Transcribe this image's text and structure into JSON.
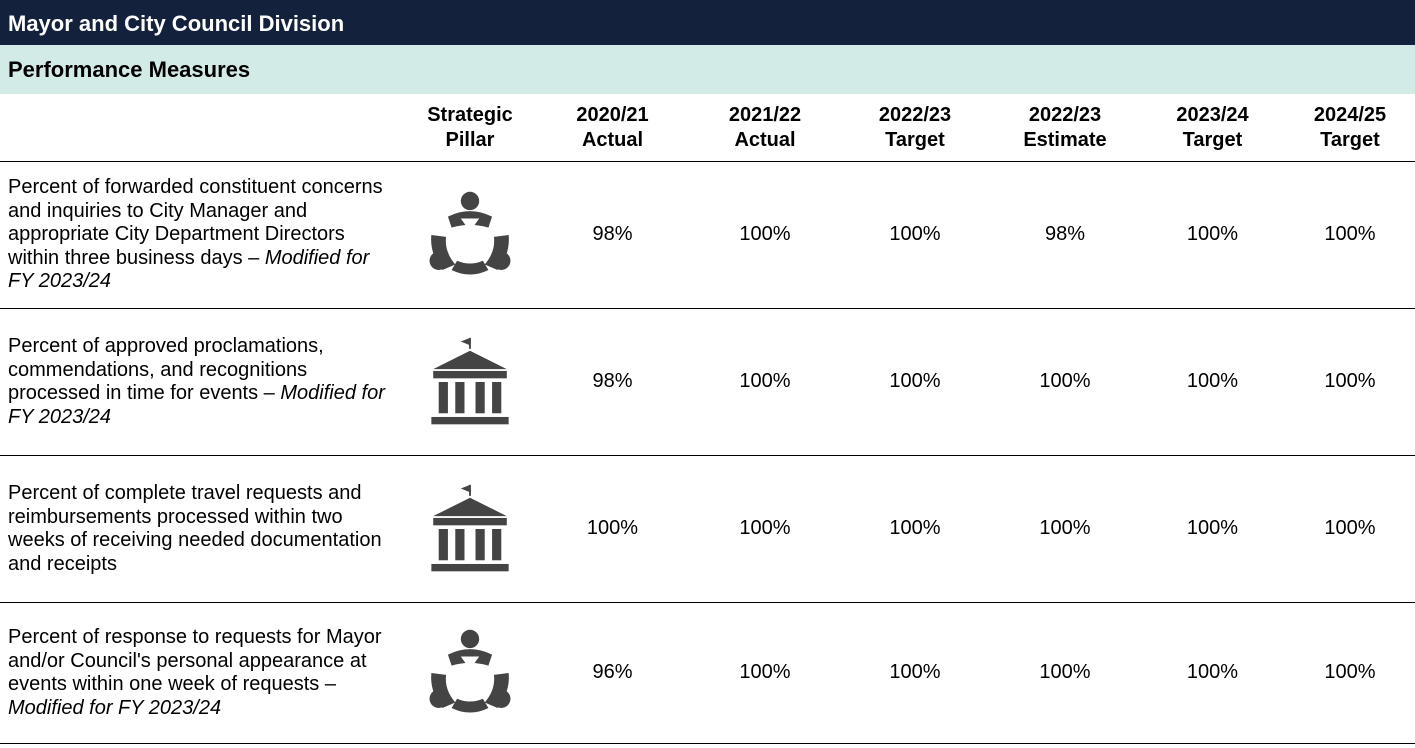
{
  "title": "Mayor and City Council Division",
  "section": "Performance Measures",
  "headers": [
    [
      "Strategic",
      "Pillar"
    ],
    [
      "2020/21",
      "Actual"
    ],
    [
      "2021/22",
      "Actual"
    ],
    [
      "2022/23",
      "Target"
    ],
    [
      "2022/23",
      "Estimate"
    ],
    [
      "2023/24",
      "Target"
    ],
    [
      "2024/25",
      "Target"
    ]
  ],
  "rows": [
    {
      "description": "Percent of forwarded constituent concerns and inquiries to City Manager and appropriate City Department Directors within three business days –",
      "note": "Modified for FY 2023/24",
      "values": [
        "98%",
        "100%",
        "100%",
        "98%",
        "100%",
        "100%"
      ]
    },
    {
      "description": "Percent of approved proclamations, commendations, and recognitions processed in time for events –",
      "note": "Modified for FY 2023/24",
      "values": [
        "98%",
        "100%",
        "100%",
        "100%",
        "100%",
        "100%"
      ]
    },
    {
      "description": "Percent of complete travel requests and reimbursements processed within two weeks of receiving needed documentation and receipts",
      "values": [
        "100%",
        "100%",
        "100%",
        "100%",
        "100%",
        "100%"
      ]
    },
    {
      "description": "Percent of response to requests for Mayor and/or Council's personal appearance at events within one week of requests –",
      "note": "Modified for FY 2023/24",
      "values": [
        "96%",
        "100%",
        "100%",
        "100%",
        "100%",
        "100%"
      ]
    }
  ]
}
